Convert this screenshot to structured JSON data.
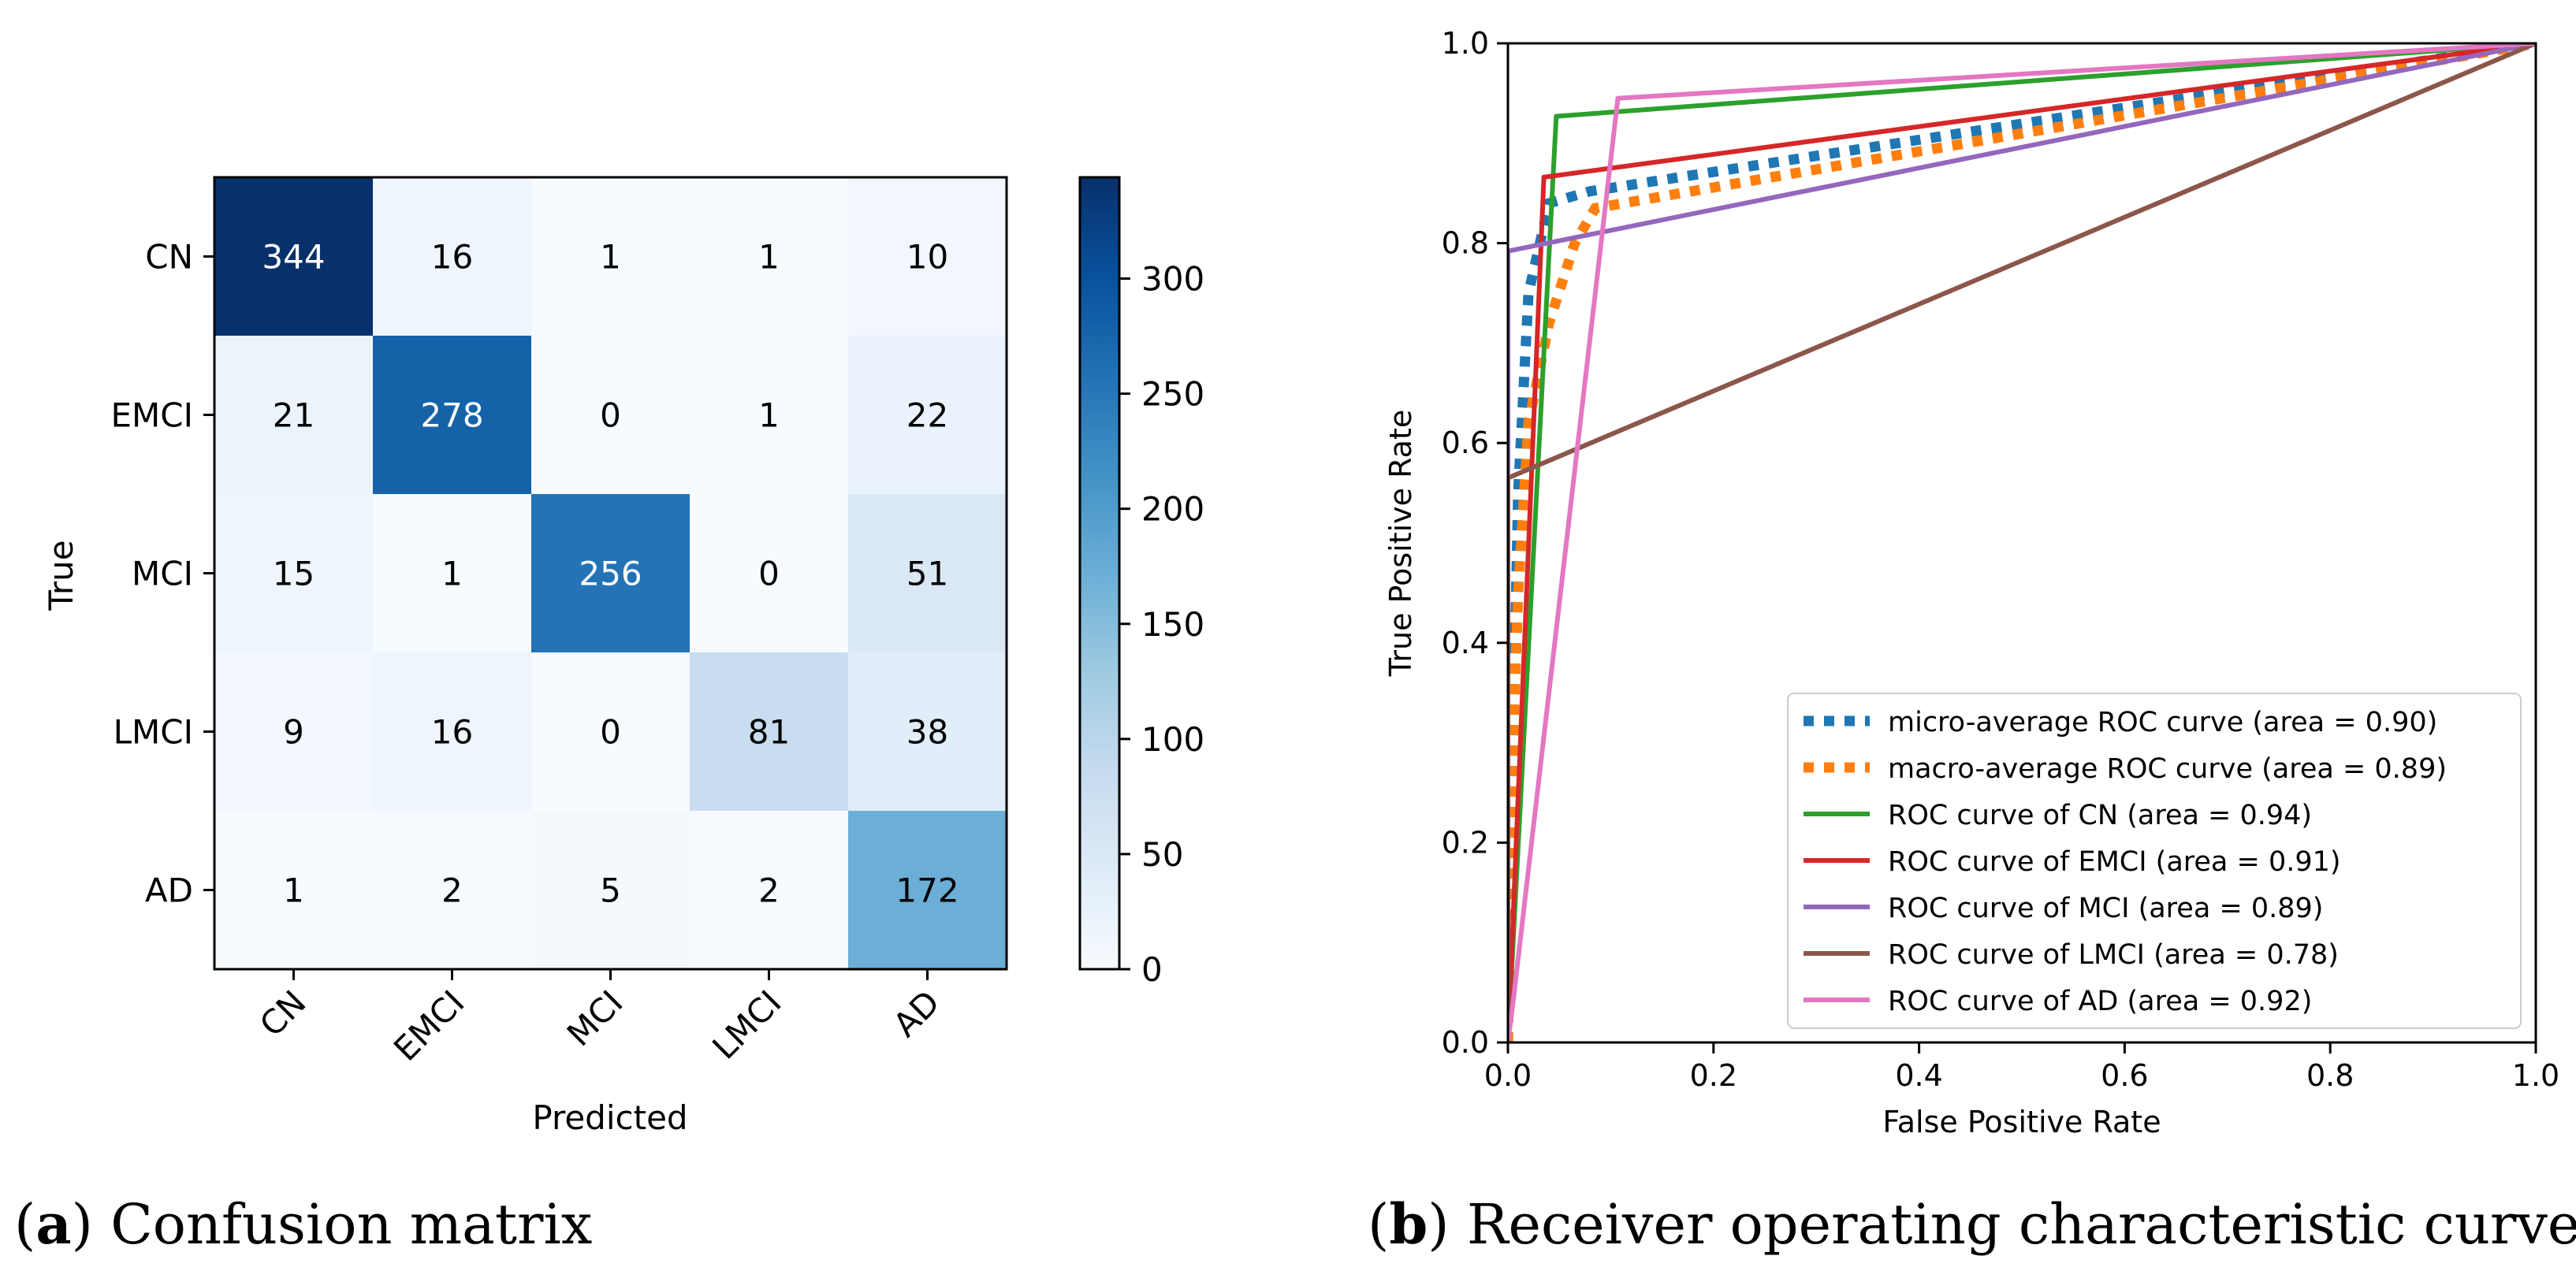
{
  "chart_data": [
    {
      "type": "heatmap",
      "xlabel": "Predicted",
      "ylabel": "True",
      "x_categories": [
        "CN",
        "EMCI",
        "MCI",
        "LMCI",
        "AD"
      ],
      "y_categories": [
        "CN",
        "EMCI",
        "MCI",
        "LMCI",
        "AD"
      ],
      "values": [
        [
          344,
          16,
          1,
          1,
          10
        ],
        [
          21,
          278,
          0,
          1,
          22
        ],
        [
          15,
          1,
          256,
          0,
          51
        ],
        [
          9,
          16,
          0,
          81,
          38
        ],
        [
          1,
          2,
          5,
          2,
          172
        ]
      ],
      "colormap": "Blues",
      "colorbar": {
        "min": 0,
        "max": 344,
        "ticks": [
          0,
          50,
          100,
          150,
          200,
          250,
          300
        ]
      },
      "caption_label": "a",
      "caption_text": " Confusion matrix"
    },
    {
      "type": "line",
      "xlabel": "False Positive Rate",
      "ylabel": "True Positive Rate",
      "xlim": [
        0,
        1
      ],
      "ylim": [
        0,
        1
      ],
      "xticks": [
        "0.0",
        "0.2",
        "0.4",
        "0.6",
        "0.8",
        "1.0"
      ],
      "yticks": [
        "0.0",
        "0.2",
        "0.4",
        "0.6",
        "0.8",
        "1.0"
      ],
      "legend_position": "lower-right",
      "series": [
        {
          "name": "micro-average ROC curve (area = 0.90)",
          "color": "#1f77b4",
          "style": "dotted",
          "x": [
            0,
            0.005,
            0.01,
            0.02,
            0.04,
            0.08,
            1.0
          ],
          "y": [
            0,
            0.3,
            0.55,
            0.75,
            0.84,
            0.852,
            1.0
          ]
        },
        {
          "name": "macro-average ROC curve (area = 0.89)",
          "color": "#ff7f0e",
          "style": "dotted",
          "x": [
            0,
            0.005,
            0.01,
            0.02,
            0.04,
            0.065,
            0.085,
            1.0
          ],
          "y": [
            0,
            0.3,
            0.45,
            0.62,
            0.72,
            0.8,
            0.835,
            1.0
          ]
        },
        {
          "name": "ROC curve of CN (area = 0.94)",
          "color": "#2ca02c",
          "style": "solid",
          "x": [
            0,
            0.047,
            1.0
          ],
          "y": [
            0,
            0.927,
            1.0
          ]
        },
        {
          "name": "ROC curve of EMCI (area = 0.91)",
          "color": "#d62728",
          "style": "solid",
          "x": [
            0,
            0.035,
            1.0
          ],
          "y": [
            0,
            0.866,
            1.0
          ]
        },
        {
          "name": "ROC curve of MCI (area = 0.89)",
          "color": "#9467bd",
          "style": "solid",
          "x": [
            0,
            0.0,
            1.0
          ],
          "y": [
            0,
            0.792,
            1.0
          ]
        },
        {
          "name": "ROC curve of LMCI (area = 0.78)",
          "color": "#8c564b",
          "style": "solid",
          "x": [
            0,
            0.0,
            1.0
          ],
          "y": [
            0,
            0.565,
            1.0
          ]
        },
        {
          "name": "ROC curve of AD (area = 0.92)",
          "color": "#e377c2",
          "style": "solid",
          "x": [
            0,
            0.005,
            0.107,
            1.0
          ],
          "y": [
            0,
            0.04,
            0.945,
            1.0
          ]
        }
      ],
      "caption_label": "b",
      "caption_text": " Receiver operating characteristic curves"
    }
  ]
}
